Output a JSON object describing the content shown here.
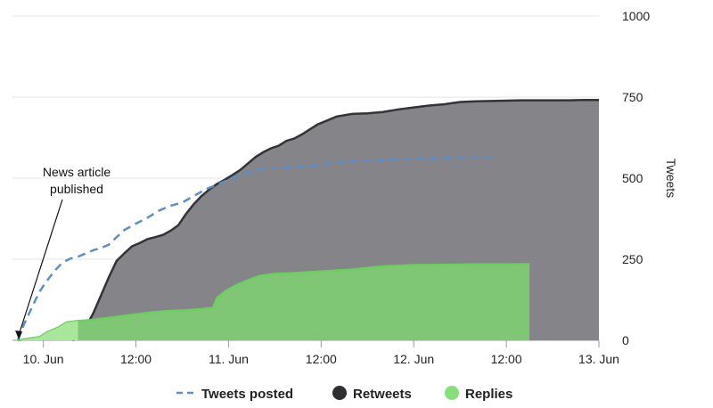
{
  "chart_data": {
    "type": "area",
    "x_unit": "hours since 10. Jun 00:00",
    "xlim": [
      -4,
      72
    ],
    "ylim": [
      0,
      1000
    ],
    "ylabel": "Tweets",
    "x_ticks": [
      {
        "x": 0,
        "label": "10. Jun"
      },
      {
        "x": 12,
        "label": "12:00"
      },
      {
        "x": 24,
        "label": "11. Jun"
      },
      {
        "x": 36,
        "label": "12:00"
      },
      {
        "x": 48,
        "label": "12. Jun"
      },
      {
        "x": 60,
        "label": "12:00"
      },
      {
        "x": 72,
        "label": "13. Jun"
      }
    ],
    "y_ticks": [
      {
        "y": 0,
        "label": "0"
      },
      {
        "y": 250,
        "label": "250"
      },
      {
        "y": 500,
        "label": "500"
      },
      {
        "y": 750,
        "label": "750"
      },
      {
        "y": 1000,
        "label": "1000"
      }
    ],
    "series": [
      {
        "name": "Retweets",
        "kind": "area",
        "color": "#333338",
        "fill": "#858589",
        "points": [
          [
            3.8,
            0
          ],
          [
            4.5,
            15
          ],
          [
            5.5,
            40
          ],
          [
            6.5,
            85
          ],
          [
            7.5,
            140
          ],
          [
            8.5,
            195
          ],
          [
            9.5,
            245
          ],
          [
            10.5,
            268
          ],
          [
            11.5,
            290
          ],
          [
            12.5,
            300
          ],
          [
            13.5,
            312
          ],
          [
            14.5,
            318
          ],
          [
            15.5,
            325
          ],
          [
            16.5,
            338
          ],
          [
            17.5,
            355
          ],
          [
            18.5,
            390
          ],
          [
            19.5,
            420
          ],
          [
            20.5,
            445
          ],
          [
            21.5,
            465
          ],
          [
            22.5,
            482
          ],
          [
            23.5,
            495
          ],
          [
            24.5,
            510
          ],
          [
            25.5,
            525
          ],
          [
            26.5,
            545
          ],
          [
            27.5,
            565
          ],
          [
            28.5,
            580
          ],
          [
            29.5,
            592
          ],
          [
            30.5,
            600
          ],
          [
            31.5,
            615
          ],
          [
            32.5,
            622
          ],
          [
            33.5,
            635
          ],
          [
            34.5,
            650
          ],
          [
            35.5,
            665
          ],
          [
            36.5,
            675
          ],
          [
            38,
            690
          ],
          [
            40,
            698
          ],
          [
            42,
            700
          ],
          [
            44,
            704
          ],
          [
            46,
            712
          ],
          [
            48,
            718
          ],
          [
            50,
            724
          ],
          [
            52,
            728
          ],
          [
            54,
            735
          ],
          [
            56,
            737
          ],
          [
            58,
            738
          ],
          [
            60,
            739
          ],
          [
            62,
            740
          ],
          [
            64,
            740
          ],
          [
            66,
            740
          ],
          [
            68,
            740
          ],
          [
            70,
            741
          ],
          [
            72,
            741
          ]
        ]
      },
      {
        "name": "Replies",
        "kind": "area",
        "color": "#6dcf5f",
        "fill": "#7fc774",
        "points": [
          [
            -3.3,
            0
          ],
          [
            -2,
            5
          ],
          [
            -0.5,
            10
          ],
          [
            0.5,
            25
          ],
          [
            2,
            40
          ],
          [
            3,
            55
          ],
          [
            4.5,
            60
          ],
          [
            6,
            62
          ],
          [
            8,
            68
          ],
          [
            10,
            74
          ],
          [
            12,
            80
          ],
          [
            14,
            86
          ],
          [
            16,
            90
          ],
          [
            18,
            92
          ],
          [
            20,
            95
          ],
          [
            22,
            100
          ],
          [
            22.5,
            130
          ],
          [
            23.5,
            150
          ],
          [
            25,
            170
          ],
          [
            26.5,
            185
          ],
          [
            28,
            198
          ],
          [
            30,
            205
          ],
          [
            32,
            207
          ],
          [
            36,
            212
          ],
          [
            40,
            218
          ],
          [
            44,
            228
          ],
          [
            48,
            232
          ],
          [
            52,
            233
          ],
          [
            56,
            234
          ],
          [
            60,
            234
          ],
          [
            63,
            235
          ]
        ]
      },
      {
        "name": "Tweets posted",
        "kind": "dashed-line",
        "color": "#5c8fc9",
        "points": [
          [
            -3.3,
            0
          ],
          [
            -2.5,
            50
          ],
          [
            -1.5,
            100
          ],
          [
            -0.5,
            150
          ],
          [
            0.5,
            185
          ],
          [
            1.5,
            215
          ],
          [
            2.5,
            240
          ],
          [
            3.5,
            252
          ],
          [
            4.5,
            258
          ],
          [
            5.5,
            268
          ],
          [
            6.5,
            278
          ],
          [
            7.5,
            285
          ],
          [
            8.5,
            295
          ],
          [
            9.5,
            318
          ],
          [
            10.5,
            340
          ],
          [
            12,
            360
          ],
          [
            13.5,
            378
          ],
          [
            15,
            400
          ],
          [
            16.5,
            415
          ],
          [
            18,
            425
          ],
          [
            19.5,
            445
          ],
          [
            21,
            465
          ],
          [
            22.5,
            480
          ],
          [
            24,
            495
          ],
          [
            25.5,
            510
          ],
          [
            27,
            520
          ],
          [
            28.5,
            528
          ],
          [
            30,
            532
          ],
          [
            32,
            534
          ],
          [
            34,
            536
          ],
          [
            36,
            542
          ],
          [
            38,
            548
          ],
          [
            40,
            552
          ],
          [
            44,
            556
          ],
          [
            48,
            560
          ],
          [
            52,
            562
          ],
          [
            56,
            564
          ],
          [
            58,
            565
          ]
        ]
      }
    ],
    "annotation": {
      "lines": [
        "News article",
        "published"
      ],
      "x": -3.3,
      "y": 0
    },
    "legend": {
      "position": "bottom-center",
      "items": [
        "Tweets posted",
        "Retweets",
        "Replies"
      ]
    }
  }
}
